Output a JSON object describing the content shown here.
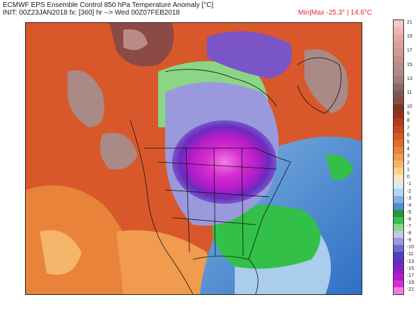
{
  "header": {
    "title": "ECMWF EPS Ensemble Control 850 hPa Temperature Anomaly [°C]",
    "init": "INIT: 00Z23JAN2018 fx: [360] hr --> Wed 00Z07FEB2018",
    "minmax": "Min|Max -25.3° | 14.6°C"
  },
  "colorbar": {
    "levels": [
      {
        "label": "21",
        "color": "#f4c6c9"
      },
      {
        "label": "",
        "color": "#efb5b5"
      },
      {
        "label": "19",
        "color": "#e6aaa6"
      },
      {
        "label": "",
        "color": "#dba29b"
      },
      {
        "label": "17",
        "color": "#d09a91"
      },
      {
        "label": "",
        "color": "#c4928a"
      },
      {
        "label": "15",
        "color": "#b88b86"
      },
      {
        "label": "",
        "color": "#a88a86"
      },
      {
        "label": "13",
        "color": "#9d7d7a"
      },
      {
        "label": "",
        "color": "#8a6a66"
      },
      {
        "label": "11",
        "color": "#7a5a55"
      },
      {
        "label": "",
        "color": "#8b4a43"
      },
      {
        "label": "10",
        "color": "#7e3324"
      },
      {
        "label": "9",
        "color": "#96301d"
      },
      {
        "label": "8",
        "color": "#b23a1c"
      },
      {
        "label": "7",
        "color": "#c9461e"
      },
      {
        "label": "6",
        "color": "#d65a22"
      },
      {
        "label": "5",
        "color": "#e06c2a"
      },
      {
        "label": "4",
        "color": "#e98339"
      },
      {
        "label": "3",
        "color": "#f09b4e"
      },
      {
        "label": "2",
        "color": "#f5b56a"
      },
      {
        "label": "1",
        "color": "#f8cf8c"
      },
      {
        "label": "0",
        "color": "#fbe7b8"
      },
      {
        "label": "-1",
        "color": "#d9ecf6"
      },
      {
        "label": "-2",
        "color": "#b4d6ef"
      },
      {
        "label": "-3",
        "color": "#7fb2e0"
      },
      {
        "label": "-4",
        "color": "#4f8fcf"
      },
      {
        "label": "-5",
        "color": "#1f9a3c"
      },
      {
        "label": "-6",
        "color": "#33c048"
      },
      {
        "label": "-7",
        "color": "#8ad685"
      },
      {
        "label": "-8",
        "color": "#c4c7ec"
      },
      {
        "label": "-9",
        "color": "#9b99dd"
      },
      {
        "label": "-10",
        "color": "#6f6bd0"
      },
      {
        "label": "-11",
        "color": "#4b42c0"
      },
      {
        "label": "-13",
        "color": "#6a2bbf"
      },
      {
        "label": "-15",
        "color": "#8d1fc4"
      },
      {
        "label": "-17",
        "color": "#b21cc9"
      },
      {
        "label": "-19",
        "color": "#d52dd0"
      },
      {
        "label": "-21",
        "color": "#f27de2"
      }
    ]
  },
  "map": {
    "region": "North America",
    "colors": {
      "ocean_warm": "#d95a2a",
      "warm_light": "#e98339",
      "hot": "#9a3a28",
      "very_hot": "#a98a86",
      "cold_core": "#d52dd0",
      "cold_magenta": "#b21cc9",
      "cold_purple": "#7a55c8",
      "cold_violet": "#9b99dd",
      "green": "#33c048",
      "green_dark": "#1f9a3c",
      "blue": "#4f8fcf",
      "light_blue": "#a9cdea",
      "border_line": "#111111"
    }
  }
}
